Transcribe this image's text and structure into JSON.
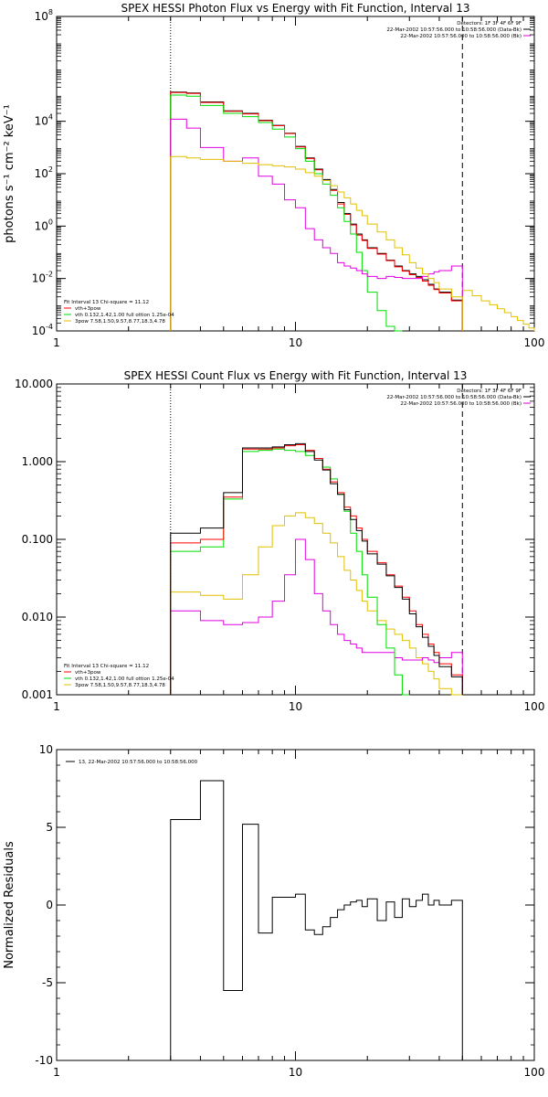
{
  "colors": {
    "black": "#000000",
    "red": "#ff0000",
    "green": "#00dd00",
    "yellow": "#e0c000",
    "magenta": "#e000e0"
  },
  "chart_data": [
    {
      "type": "line",
      "title": "SPEX HESSI Photon Flux vs Energy with Fit Function, Interval 13",
      "ylabel": "photons s⁻¹ cm⁻² keV⁻¹",
      "xscale": "log",
      "yscale": "log",
      "xlim": [
        1,
        100
      ],
      "ylim": [
        0.0001,
        100000000
      ],
      "xticks": [
        "1",
        "10",
        "100"
      ],
      "yticks": [
        {
          "v": 0.0001,
          "m": "10",
          "e": "-4"
        },
        {
          "v": 0.01,
          "m": "10",
          "e": "-2"
        },
        {
          "v": 1,
          "m": "10",
          "e": "0"
        },
        {
          "v": 100,
          "m": "10",
          "e": "2"
        },
        {
          "v": 10000,
          "m": "10",
          "e": "4"
        },
        {
          "v": 100000000,
          "m": "10",
          "e": "8"
        }
      ],
      "vlines": [
        {
          "x": 3,
          "style": "dotted"
        },
        {
          "x": 50,
          "style": "dashed"
        }
      ],
      "legend_tr": [
        {
          "text": "Detectors: 1F 3F 4F 6F 9F"
        },
        {
          "text": "22-Mar-2002 10:57:56.000 to 10:58:56.000 (Data-Bk)",
          "color": "black"
        },
        {
          "text": "22-Mar-2002 10:57:56.000 to 10:58:56.000 (Bk)",
          "color": "magenta"
        }
      ],
      "legend_bl": [
        {
          "text": "Fit Interval 13    Chi-square = 11.12"
        },
        {
          "text": "vth+3pow",
          "color": "red"
        },
        {
          "text": "vth 0.132,1.42,1.00  full ottion 1.25e-04",
          "color": "green"
        },
        {
          "text": "3pow 7.58,1.50,9.57,8.77,18.3,4.78",
          "color": "yellow"
        }
      ],
      "edges": [
        3,
        3.5,
        4,
        5,
        6,
        7,
        8,
        9,
        10,
        11,
        12,
        13,
        14,
        15,
        16,
        17,
        18,
        19,
        20,
        22,
        24,
        26,
        28,
        30,
        32,
        34,
        36,
        38,
        40,
        45,
        50
      ],
      "series": [
        {
          "name": "black",
          "color": "black",
          "values": [
            130000,
            120000,
            55000,
            25000,
            20000,
            11000,
            7000,
            3500,
            1100,
            400,
            150,
            60,
            25,
            8,
            3,
            1.2,
            0.5,
            0.3,
            0.15,
            0.09,
            0.05,
            0.03,
            0.02,
            0.015,
            0.012,
            0.009,
            0.006,
            0.004,
            0.003,
            0.0015
          ]
        },
        {
          "name": "red",
          "color": "red",
          "values": [
            125000,
            115000,
            52000,
            24000,
            19000,
            10500,
            6800,
            3400,
            1050,
            380,
            140,
            55,
            23,
            7,
            2.8,
            1.1,
            0.45,
            0.28,
            0.14,
            0.085,
            0.048,
            0.028,
            0.019,
            0.014,
            0.011,
            0.008,
            0.0055,
            0.0038,
            0.0028,
            0.0014
          ]
        },
        {
          "name": "green",
          "color": "green",
          "values": [
            100000,
            90000,
            40000,
            20000,
            15000,
            9000,
            5000,
            2500,
            900,
            300,
            100,
            40,
            15,
            5,
            1.5,
            0.5,
            0.1,
            0.02,
            0.003,
            0.0006,
            0.00015,
            4e-05
          ]
        },
        {
          "name": "magenta",
          "color": "magenta",
          "values": [
            12000,
            5500,
            1000,
            300,
            400,
            80,
            40,
            10,
            5,
            0.8,
            0.3,
            0.15,
            0.09,
            0.04,
            0.03,
            0.025,
            0.02,
            0.015,
            0.012,
            0.01,
            0.012,
            0.011,
            0.01,
            0.01,
            0.01,
            0.012,
            0.015,
            0.018,
            0.02,
            0.03
          ]
        },
        {
          "name": "yellow",
          "color": "yellow",
          "values": [
            450,
            400,
            350,
            300,
            250,
            220,
            200,
            180,
            150,
            110,
            80,
            55,
            35,
            20,
            12,
            7,
            4,
            2.5,
            1.2,
            0.6,
            0.3,
            0.15,
            0.08,
            0.04,
            0.025,
            0.015,
            0.01,
            0.007,
            0.004,
            0.002
          ]
        }
      ],
      "yellow_tail": {
        "edges": [
          50,
          55,
          60,
          65,
          70,
          75,
          80,
          85,
          90,
          95,
          100
        ],
        "values": [
          0.0035,
          0.0022,
          0.0014,
          0.001,
          0.0007,
          0.0005,
          0.00035,
          0.00025,
          0.00018,
          0.00013
        ]
      }
    },
    {
      "type": "line",
      "title": "SPEX HESSI Count Flux vs Energy with Fit Function, Interval 13",
      "ylabel": "",
      "xscale": "log",
      "yscale": "log",
      "xlim": [
        1,
        100
      ],
      "ylim": [
        0.001,
        10
      ],
      "xticks": [
        "1",
        "10",
        "100"
      ],
      "yticks": [
        {
          "v": 0.001,
          "t": "0.001"
        },
        {
          "v": 0.01,
          "t": "0.010"
        },
        {
          "v": 0.1,
          "t": "0.100"
        },
        {
          "v": 1,
          "t": "1.000"
        },
        {
          "v": 10,
          "t": "10.000"
        }
      ],
      "vlines": [
        {
          "x": 3,
          "style": "dotted"
        },
        {
          "x": 50,
          "style": "dashed"
        }
      ],
      "legend_tr": [
        {
          "text": "Detectors: 1F 3F 4F 6F 9F"
        },
        {
          "text": "22-Mar-2002 10:57:56.000 to 10:58:56.000 (Data-Bk)",
          "color": "black"
        },
        {
          "text": "22-Mar-2002 10:57:56.000 to 10:58:56.000 (Bk)",
          "color": "magenta"
        }
      ],
      "legend_bl": [
        {
          "text": "Fit Interval 13    Chi-square = 11.12"
        },
        {
          "text": "vth+3pow",
          "color": "red"
        },
        {
          "text": "vth 0.132,1.42,1.00  full ottion 1.25e-04",
          "color": "green"
        },
        {
          "text": "3pow 7.58,1.50,9.57,8.77,18.3,4.78",
          "color": "yellow"
        }
      ],
      "edges": [
        3,
        4,
        5,
        6,
        7,
        8,
        9,
        10,
        11,
        12,
        13,
        14,
        15,
        16,
        17,
        18,
        19,
        20,
        22,
        24,
        26,
        28,
        30,
        32,
        34,
        36,
        38,
        40,
        45,
        50
      ],
      "series": [
        {
          "name": "yellow",
          "color": "yellow",
          "values": [
            0.021,
            0.019,
            0.017,
            0.035,
            0.08,
            0.15,
            0.2,
            0.22,
            0.19,
            0.16,
            0.12,
            0.09,
            0.06,
            0.04,
            0.03,
            0.022,
            0.016,
            0.012,
            0.009,
            0.007,
            0.006,
            0.005,
            0.004,
            0.003,
            0.0025,
            0.002,
            0.0016,
            0.0012,
            0.001
          ]
        },
        {
          "name": "magenta",
          "color": "magenta",
          "values": [
            0.012,
            0.009,
            0.008,
            0.0085,
            0.01,
            0.016,
            0.035,
            0.1,
            0.055,
            0.02,
            0.012,
            0.008,
            0.006,
            0.005,
            0.0045,
            0.004,
            0.0035,
            0.0035,
            0.0035,
            0.0035,
            0.003,
            0.0028,
            0.0028,
            0.0028,
            0.003,
            0.0028,
            0.0026,
            0.003,
            0.0035
          ]
        },
        {
          "name": "green",
          "color": "green",
          "values": [
            0.07,
            0.08,
            0.33,
            1.35,
            1.4,
            1.45,
            1.4,
            1.35,
            1.2,
            1.1,
            0.85,
            0.6,
            0.38,
            0.23,
            0.12,
            0.07,
            0.035,
            0.018,
            0.008,
            0.004,
            0.0018,
            0.0008
          ]
        },
        {
          "name": "red",
          "color": "red",
          "values": [
            0.09,
            0.1,
            0.35,
            1.45,
            1.45,
            1.5,
            1.6,
            1.65,
            1.4,
            1.1,
            0.8,
            0.55,
            0.4,
            0.26,
            0.2,
            0.14,
            0.1,
            0.07,
            0.05,
            0.035,
            0.025,
            0.018,
            0.012,
            0.008,
            0.006,
            0.0045,
            0.0035,
            0.0025,
            0.0018
          ]
        },
        {
          "name": "black",
          "color": "black",
          "values": [
            0.12,
            0.14,
            0.4,
            1.5,
            1.5,
            1.55,
            1.65,
            1.7,
            1.35,
            1.05,
            0.78,
            0.52,
            0.38,
            0.24,
            0.18,
            0.13,
            0.095,
            0.065,
            0.048,
            0.034,
            0.024,
            0.017,
            0.011,
            0.0075,
            0.0055,
            0.0042,
            0.0032,
            0.0023,
            0.0017
          ]
        }
      ]
    },
    {
      "type": "line",
      "title": "",
      "ylabel": "Normalized Residuals",
      "xscale": "log",
      "yscale": "linear",
      "xlim": [
        1,
        100
      ],
      "ylim": [
        -10,
        10
      ],
      "xticks": [
        "1",
        "10",
        "100"
      ],
      "yticks": [
        {
          "v": -10,
          "t": "-10"
        },
        {
          "v": -5,
          "t": "-5"
        },
        {
          "v": 0,
          "t": "0"
        },
        {
          "v": 5,
          "t": "5"
        },
        {
          "v": 10,
          "t": "10"
        }
      ],
      "legend_tr": [],
      "legend_tl": [
        {
          "text": "13, 22-Mar-2002 10:57:56.000 to 10:58:56.000",
          "color": "black"
        }
      ],
      "edges": [
        3,
        4,
        5,
        6,
        7,
        8,
        9,
        10,
        11,
        12,
        13,
        14,
        15,
        16,
        17,
        18,
        19,
        20,
        22,
        24,
        26,
        28,
        30,
        32,
        34,
        36,
        38,
        40,
        45,
        50
      ],
      "series": [
        {
          "name": "residuals",
          "color": "black",
          "values": [
            5.5,
            8,
            -5.5,
            5.2,
            -1.8,
            0.5,
            0.5,
            0.7,
            -1.6,
            -1.9,
            -1.4,
            -0.8,
            -0.3,
            0,
            0.2,
            0.3,
            -0.1,
            0.4,
            -1,
            0.2,
            -0.8,
            0.4,
            -0.1,
            0.3,
            0.7,
            0,
            0.3,
            0,
            0.3
          ]
        }
      ]
    }
  ]
}
